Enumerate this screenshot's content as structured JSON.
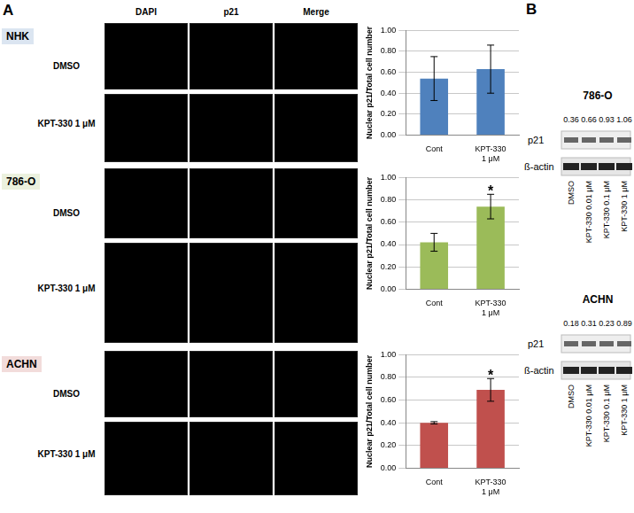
{
  "figure": {
    "panel_a": {
      "label": "A",
      "columns": [
        "DAPI",
        "p21",
        "Merge"
      ],
      "rows": [
        {
          "cell_line": "NHK",
          "conditions": [
            "DMSO",
            "KPT-330 1 μM"
          ]
        },
        {
          "cell_line": "786-O",
          "conditions": [
            "DMSO",
            "KPT-330 1 μM"
          ]
        },
        {
          "cell_line": "ACHN",
          "conditions": [
            "DMSO",
            "KPT-330 1 μM"
          ]
        }
      ]
    },
    "panel_b": {
      "label": "B",
      "blots": [
        {
          "cell_line": "786-O",
          "bands": [
            "p21",
            "ß-actin"
          ],
          "lanes": [
            "DMSO",
            "KPT-330 0.01 μM",
            "KPT-330 0.1 μM",
            "KPT-330 1 μM"
          ],
          "p21_values": [
            0.36,
            0.66,
            0.93,
            1.06
          ],
          "value_labels": [
            "0.36",
            "0.66",
            "0.93",
            "1.06"
          ]
        },
        {
          "cell_line": "ACHN",
          "bands": [
            "p21",
            "ß-actin"
          ],
          "lanes": [
            "DMSO",
            "KPT-330 0.01 μM",
            "KPT-330 0.1 μM",
            "KPT-330 1 μM"
          ],
          "p21_values": [
            0.18,
            0.31,
            0.23,
            0.89
          ],
          "value_labels": [
            "0.18",
            "0.31",
            "0.23",
            "0.89"
          ]
        }
      ]
    }
  },
  "chart_data": [
    {
      "type": "bar",
      "y_label": "Nuclear p21/Total cell number",
      "categories": [
        "Cont",
        "KPT-330 1 μM"
      ],
      "values": [
        0.54,
        0.63
      ],
      "errors": [
        0.21,
        0.23
      ],
      "color": "#4f81bd",
      "ylim": [
        0,
        1
      ],
      "yticks": [
        {
          "value": 0,
          "label": "0.00"
        },
        {
          "value": 0.2,
          "label": "0.20"
        },
        {
          "value": 0.4,
          "label": "0.40"
        },
        {
          "value": 0.6,
          "label": "0.60"
        },
        {
          "value": 0.8,
          "label": "0.80"
        },
        {
          "value": 1,
          "label": "1.00"
        }
      ],
      "grid": true
    },
    {
      "type": "bar",
      "y_label": "Nuclear p21/Total cell number",
      "categories": [
        "Cont",
        "KPT-330 1 μM"
      ],
      "values": [
        0.42,
        0.74
      ],
      "errors": [
        0.08,
        0.11
      ],
      "color": "#9bbb59",
      "ylim": [
        0,
        1
      ],
      "yticks": [
        {
          "value": 0,
          "label": "0.00"
        },
        {
          "value": 0.2,
          "label": "0.20"
        },
        {
          "value": 0.4,
          "label": "0.40"
        },
        {
          "value": 0.6,
          "label": "0.60"
        },
        {
          "value": 0.8,
          "label": "0.80"
        },
        {
          "value": 1,
          "label": "1.00"
        }
      ],
      "grid": true,
      "annotations": [
        {
          "x": "KPT-330 1 μM",
          "text": "*"
        }
      ]
    },
    {
      "type": "bar",
      "y_label": "Nuclear p21/Total cell number",
      "categories": [
        "Cont",
        "KPT-330 1 μM"
      ],
      "values": [
        0.4,
        0.69
      ],
      "errors": [
        0.01,
        0.1
      ],
      "color": "#c0504d",
      "ylim": [
        0,
        1
      ],
      "yticks": [
        {
          "value": 0,
          "label": "0.00"
        },
        {
          "value": 0.2,
          "label": "0.20"
        },
        {
          "value": 0.4,
          "label": "0.40"
        },
        {
          "value": 0.6,
          "label": "0.60"
        },
        {
          "value": 0.8,
          "label": "0.80"
        },
        {
          "value": 1,
          "label": "1.00"
        }
      ],
      "grid": true,
      "annotations": [
        {
          "x": "KPT-330 1 μM",
          "text": "*"
        }
      ]
    }
  ]
}
